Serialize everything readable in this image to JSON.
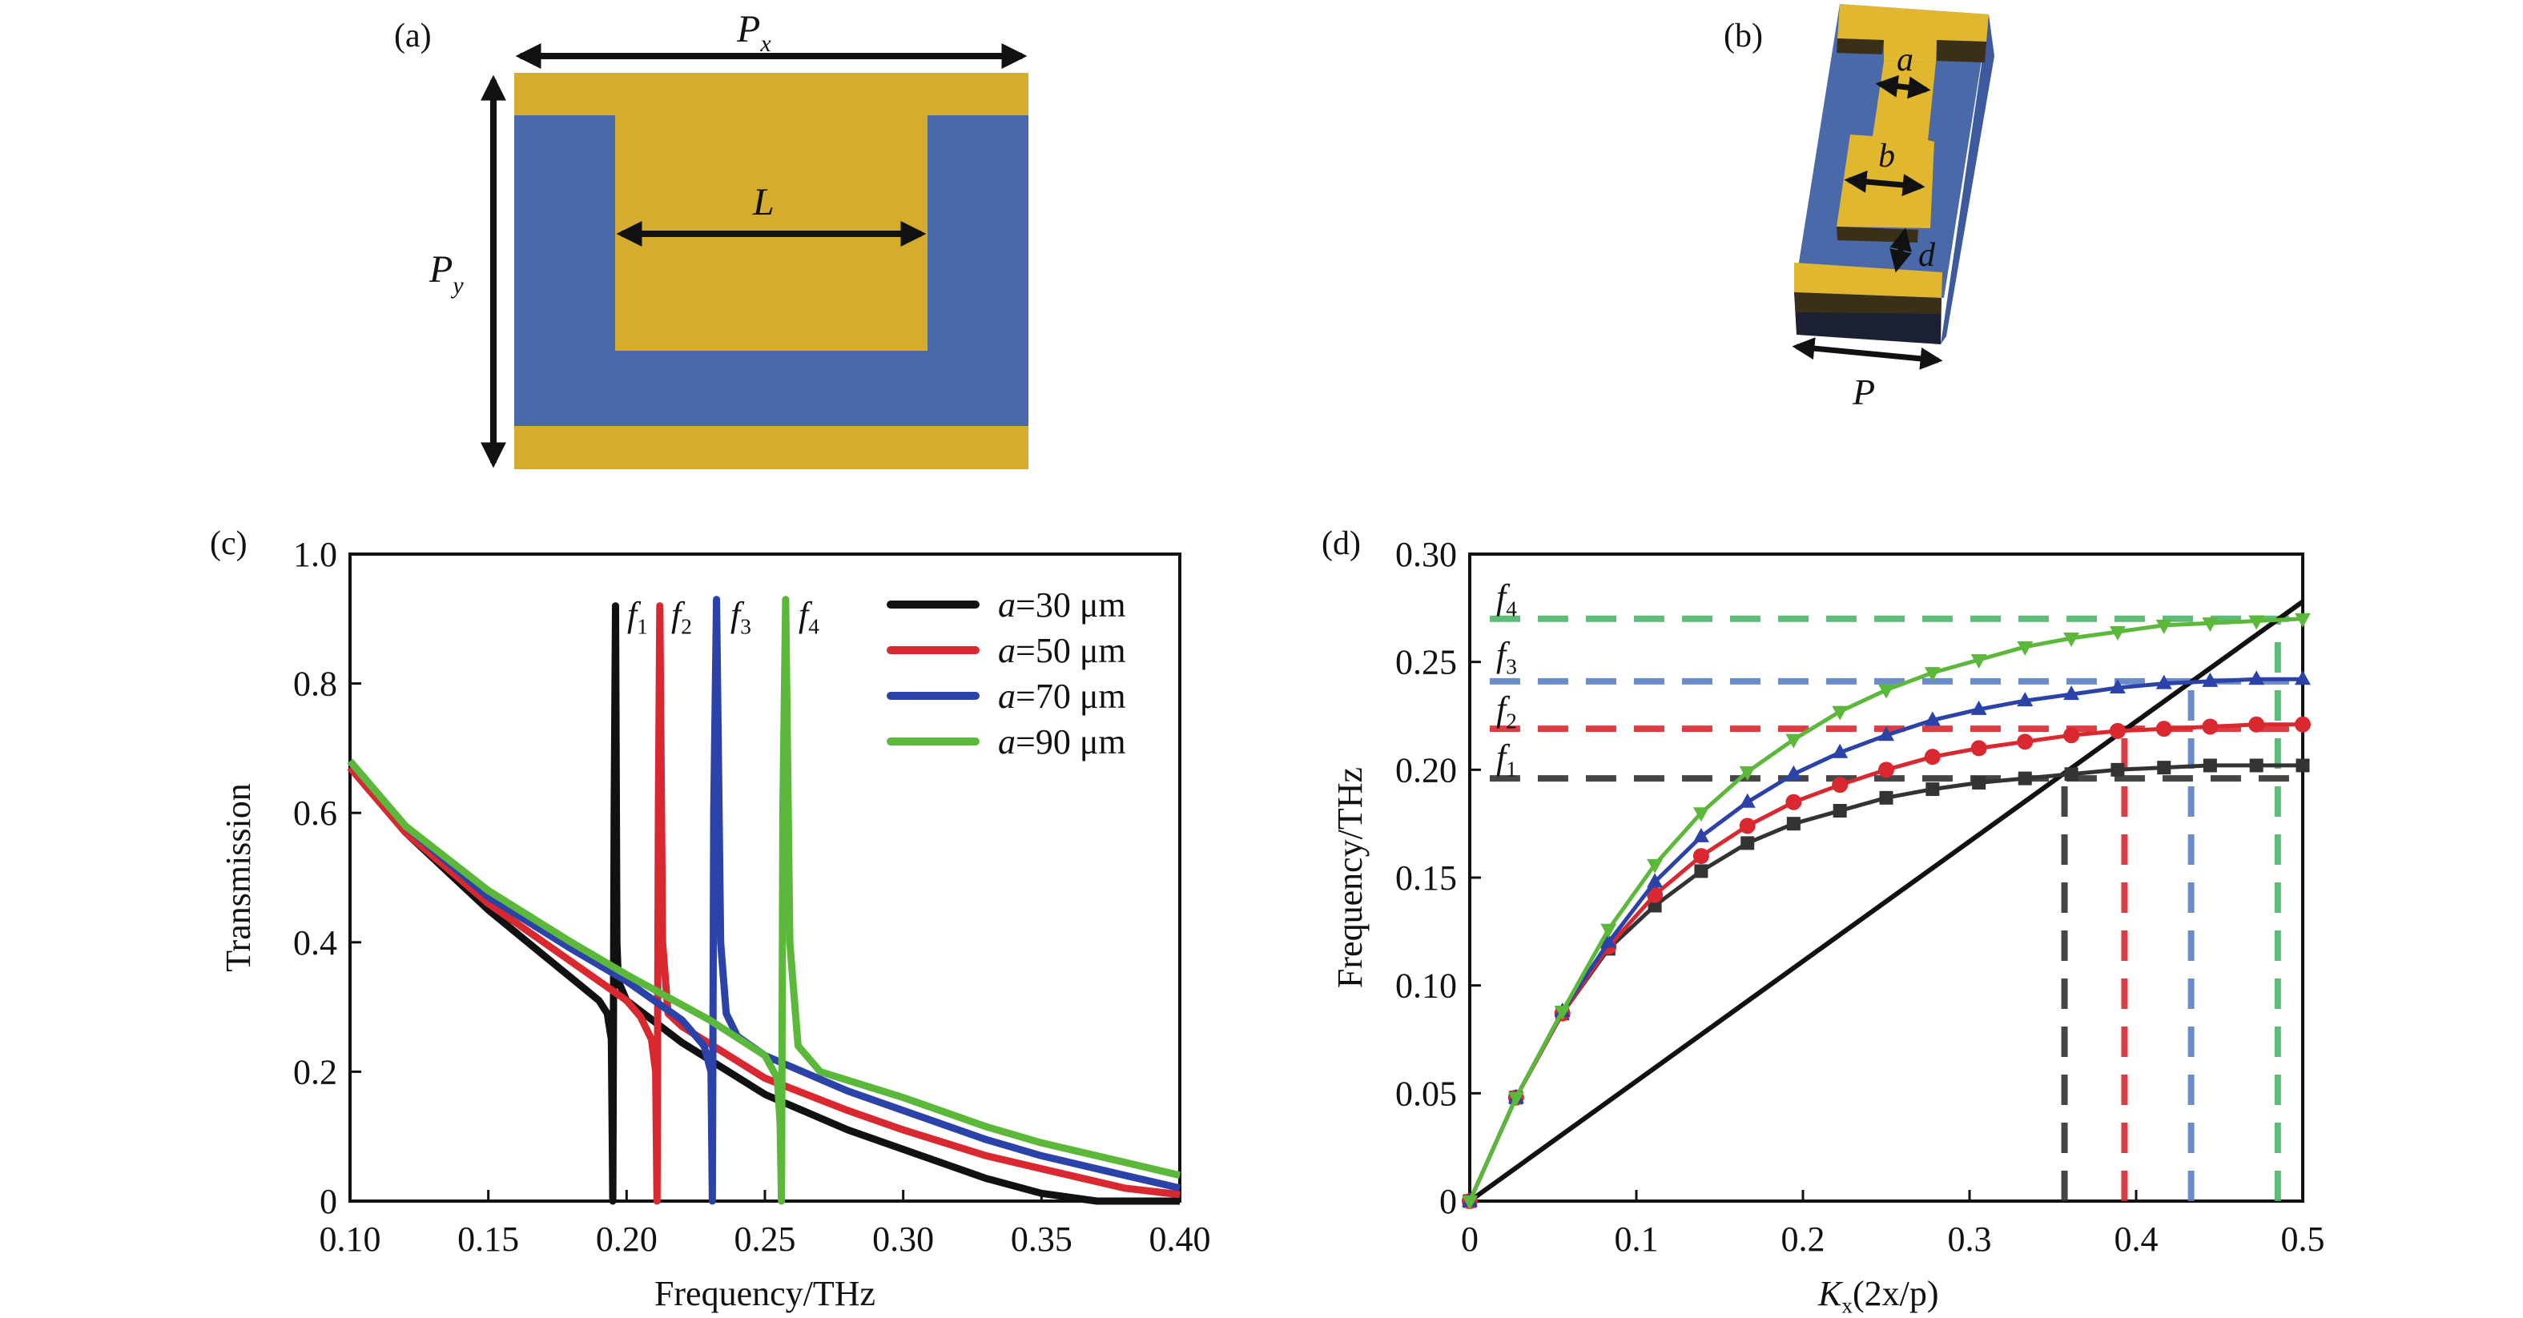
{
  "panels": {
    "a": {
      "label": "(a)",
      "px": {
        "main": "P",
        "sub": "x"
      },
      "py": {
        "main": "P",
        "sub": "y"
      },
      "l": "L"
    },
    "b": {
      "label": "(b)",
      "a": "a",
      "b": "b",
      "d": "d",
      "p": "P"
    },
    "c": {
      "label": "(c)"
    },
    "d": {
      "label": "(d)"
    }
  },
  "colors": {
    "gold": "#d6ac2f",
    "blue": "#4a69a9",
    "black": "#111111",
    "red": "#d9282f",
    "blue_line": "#2b43a8",
    "green": "#5cb83a",
    "dark": "#3a2f17"
  },
  "chart_data": [
    {
      "type": "line",
      "title": "",
      "xlabel": "Frequency/THz",
      "ylabel": "Transmission",
      "xlim": [
        0.1,
        0.4
      ],
      "ylim": [
        0,
        1.0
      ],
      "xticks": [
        "0.10",
        "0.15",
        "0.20",
        "0.25",
        "0.30",
        "0.35",
        "0.40"
      ],
      "yticks": [
        "0",
        "0.2",
        "0.4",
        "0.6",
        "0.8",
        "1.0"
      ],
      "legend_position": "top-right",
      "resonance_labels": [
        {
          "main": "f",
          "sub": "1"
        },
        {
          "main": "f",
          "sub": "2"
        },
        {
          "main": "f",
          "sub": "3"
        },
        {
          "main": "f",
          "sub": "4"
        }
      ],
      "series": [
        {
          "name": "a=30 μm",
          "var": "a",
          "rest": "=30 μm",
          "color": "#111111",
          "x": [
            0.1,
            0.12,
            0.15,
            0.17,
            0.18,
            0.19,
            0.193,
            0.1945,
            0.195,
            0.1955,
            0.196,
            0.1965,
            0.197,
            0.2,
            0.22,
            0.25,
            0.28,
            0.3,
            0.33,
            0.35,
            0.37,
            0.4
          ],
          "y": [
            0.67,
            0.57,
            0.45,
            0.38,
            0.345,
            0.31,
            0.29,
            0.25,
            0.0,
            0.6,
            0.92,
            0.4,
            0.34,
            0.31,
            0.245,
            0.165,
            0.11,
            0.08,
            0.035,
            0.012,
            0.0,
            0.0
          ]
        },
        {
          "name": "a=50 μm",
          "var": "a",
          "rest": "=50 μm",
          "color": "#d9282f",
          "x": [
            0.1,
            0.12,
            0.15,
            0.18,
            0.2,
            0.205,
            0.209,
            0.2105,
            0.211,
            0.2115,
            0.212,
            0.213,
            0.215,
            0.22,
            0.25,
            0.28,
            0.3,
            0.33,
            0.35,
            0.38,
            0.4
          ],
          "y": [
            0.67,
            0.57,
            0.46,
            0.37,
            0.31,
            0.285,
            0.25,
            0.2,
            0.0,
            0.6,
            0.92,
            0.4,
            0.29,
            0.27,
            0.19,
            0.14,
            0.11,
            0.07,
            0.05,
            0.02,
            0.01
          ]
        },
        {
          "name": "a=70 μm",
          "var": "a",
          "rest": "=70 μm",
          "color": "#2b43a8",
          "x": [
            0.1,
            0.12,
            0.15,
            0.18,
            0.2,
            0.22,
            0.228,
            0.2305,
            0.231,
            0.2315,
            0.2325,
            0.234,
            0.236,
            0.24,
            0.25,
            0.28,
            0.3,
            0.33,
            0.35,
            0.38,
            0.4
          ],
          "y": [
            0.68,
            0.58,
            0.47,
            0.39,
            0.34,
            0.28,
            0.24,
            0.2,
            0.0,
            0.6,
            0.93,
            0.4,
            0.29,
            0.255,
            0.225,
            0.17,
            0.14,
            0.095,
            0.07,
            0.04,
            0.02
          ]
        },
        {
          "name": "a=90 μm",
          "var": "a",
          "rest": "=90 μm",
          "color": "#5cb83a",
          "x": [
            0.1,
            0.12,
            0.15,
            0.18,
            0.2,
            0.23,
            0.25,
            0.2545,
            0.2555,
            0.256,
            0.2565,
            0.2575,
            0.259,
            0.262,
            0.27,
            0.3,
            0.33,
            0.35,
            0.38,
            0.4
          ],
          "y": [
            0.68,
            0.58,
            0.48,
            0.4,
            0.35,
            0.28,
            0.225,
            0.19,
            0.12,
            0.0,
            0.6,
            0.93,
            0.4,
            0.24,
            0.2,
            0.16,
            0.115,
            0.09,
            0.06,
            0.04
          ]
        }
      ]
    },
    {
      "type": "line",
      "title": "",
      "xlabel": {
        "main": "K",
        "sub": "x",
        "rest": "(2x/p)"
      },
      "ylabel": "Frequency/THz",
      "xlim": [
        0,
        0.5
      ],
      "ylim": [
        0,
        0.3
      ],
      "xticks": [
        "0",
        "0.1",
        "0.2",
        "0.3",
        "0.4",
        "0.5"
      ],
      "yticks": [
        "0",
        "0.05",
        "0.10",
        "0.15",
        "0.20",
        "0.25",
        "0.30"
      ],
      "x": [
        0,
        0.0278,
        0.0556,
        0.0833,
        0.1111,
        0.1389,
        0.1667,
        0.1944,
        0.2222,
        0.25,
        0.2778,
        0.3056,
        0.3333,
        0.3611,
        0.3889,
        0.4167,
        0.4444,
        0.4722,
        0.5
      ],
      "series": [
        {
          "name": "a=30 μm",
          "marker": "square",
          "color": "#333333",
          "y": [
            0,
            0.048,
            0.087,
            0.117,
            0.137,
            0.153,
            0.166,
            0.175,
            0.181,
            0.187,
            0.191,
            0.194,
            0.196,
            0.198,
            0.2,
            0.201,
            0.202,
            0.202,
            0.202
          ]
        },
        {
          "name": "a=50 μm",
          "marker": "circle",
          "color": "#d9282f",
          "y": [
            0,
            0.048,
            0.087,
            0.118,
            0.142,
            0.16,
            0.174,
            0.185,
            0.193,
            0.2,
            0.206,
            0.21,
            0.213,
            0.216,
            0.218,
            0.219,
            0.22,
            0.221,
            0.221
          ]
        },
        {
          "name": "a=70 μm",
          "marker": "triangle-up",
          "color": "#2b43a8",
          "y": [
            0,
            0.048,
            0.088,
            0.12,
            0.148,
            0.169,
            0.185,
            0.198,
            0.208,
            0.216,
            0.223,
            0.228,
            0.232,
            0.235,
            0.238,
            0.24,
            0.241,
            0.242,
            0.242
          ]
        },
        {
          "name": "a=90 μm",
          "marker": "triangle-down",
          "color": "#5cb83a",
          "y": [
            0,
            0.048,
            0.088,
            0.126,
            0.156,
            0.18,
            0.199,
            0.214,
            0.227,
            0.237,
            0.245,
            0.251,
            0.257,
            0.261,
            0.264,
            0.267,
            0.268,
            0.269,
            0.27
          ]
        }
      ],
      "light_line": {
        "x": [
          0,
          0.5
        ],
        "y": [
          0,
          0.278
        ],
        "color": "#111111"
      },
      "cutoffs": [
        {
          "label": {
            "main": "f",
            "sub": "1"
          },
          "freq": 0.196,
          "k": 0.357,
          "kfreq": 0.2,
          "color": "#333333"
        },
        {
          "label": {
            "main": "f",
            "sub": "2"
          },
          "freq": 0.219,
          "k": 0.393,
          "kfreq": 0.22,
          "color": "#d9282f"
        },
        {
          "label": {
            "main": "f",
            "sub": "3"
          },
          "freq": 0.241,
          "k": 0.433,
          "kfreq": 0.24,
          "color": "#5b7fc4"
        },
        {
          "label": {
            "main": "f",
            "sub": "4"
          },
          "freq": 0.27,
          "k": 0.485,
          "kfreq": 0.27,
          "color": "#4cb56a"
        }
      ]
    }
  ]
}
